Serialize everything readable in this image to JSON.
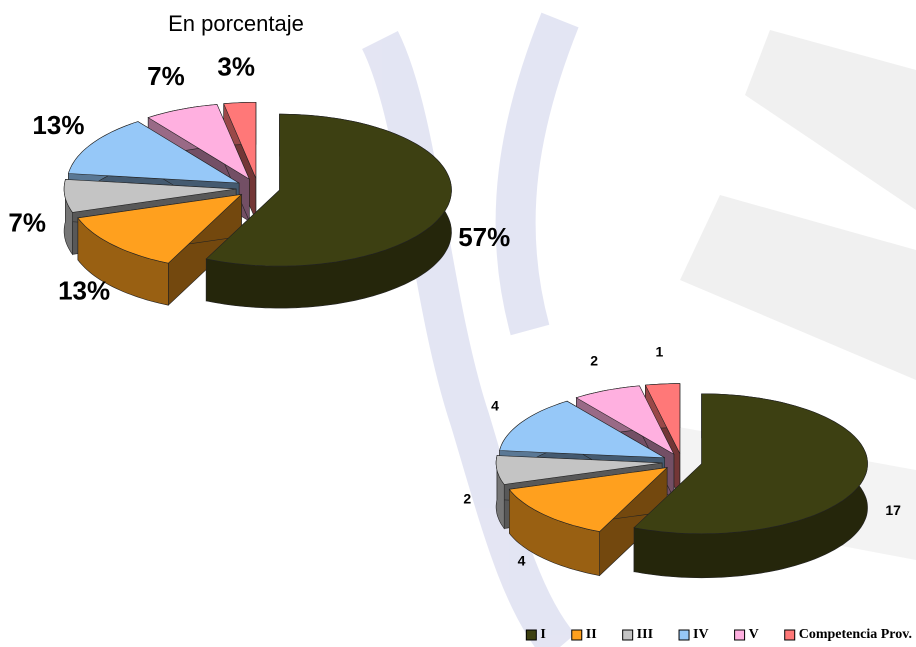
{
  "chart_data": [
    {
      "type": "pie",
      "title": "En porcentaje",
      "values": [
        57,
        13,
        7,
        13,
        7,
        3
      ],
      "value_labels": [
        "57%",
        "13%",
        "7%",
        "13%",
        "7%",
        "3%"
      ],
      "colors": [
        "#3d4012",
        "#ffa01e",
        "#c4c4c4",
        "#96c8f8",
        "#ffb0e0",
        "#ff7878"
      ]
    },
    {
      "type": "pie",
      "categories": [
        "I",
        "II",
        "III",
        "IV",
        "V",
        "Competencia Prov."
      ],
      "values": [
        17,
        4,
        2,
        4,
        2,
        1
      ],
      "colors": [
        "#3d4012",
        "#ffa01e",
        "#c4c4c4",
        "#96c8f8",
        "#ffb0e0",
        "#ff7878"
      ],
      "legend": "bottom-right"
    }
  ]
}
